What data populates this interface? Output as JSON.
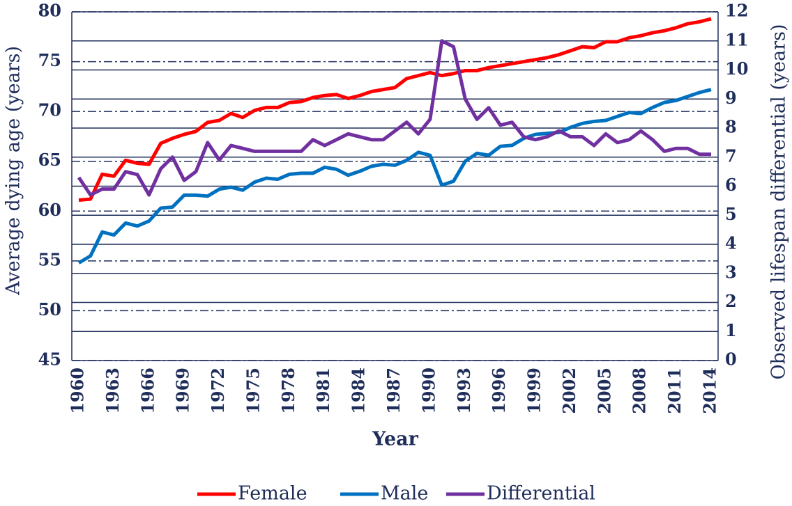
{
  "chart_data": {
    "type": "line",
    "xlabel": "Year",
    "ylabel": "Average dying age (years)",
    "y2label": "Observed lifespan differential (years)",
    "x": [
      1960,
      1961,
      1962,
      1963,
      1964,
      1965,
      1966,
      1967,
      1968,
      1969,
      1970,
      1971,
      1972,
      1973,
      1974,
      1975,
      1976,
      1977,
      1978,
      1979,
      1980,
      1981,
      1982,
      1983,
      1984,
      1985,
      1986,
      1987,
      1988,
      1989,
      1990,
      1991,
      1992,
      1993,
      1994,
      1995,
      1996,
      1997,
      1998,
      1999,
      2000,
      2001,
      2002,
      2003,
      2004,
      2005,
      2006,
      2007,
      2008,
      2009,
      2010,
      2011,
      2012,
      2013,
      2014
    ],
    "xlim": [
      1960,
      2014
    ],
    "xticks": [
      1960,
      1963,
      1966,
      1969,
      1972,
      1975,
      1978,
      1981,
      1984,
      1987,
      1990,
      1993,
      1996,
      1999,
      2002,
      2005,
      2008,
      2011,
      2014
    ],
    "ylim": [
      45,
      80
    ],
    "yticks": [
      45,
      50,
      55,
      60,
      65,
      70,
      75,
      80
    ],
    "y2lim": [
      0,
      12
    ],
    "y2ticks": [
      0,
      1,
      2,
      3,
      4,
      5,
      6,
      7,
      8,
      9,
      10,
      11,
      12
    ],
    "grid": true,
    "legend": "bottom",
    "series": [
      {
        "name": "Female",
        "color": "#ff0000",
        "values": [
          61.1,
          61.2,
          63.7,
          63.5,
          65.1,
          64.8,
          64.7,
          66.8,
          67.3,
          67.7,
          68.0,
          68.9,
          69.1,
          69.8,
          69.4,
          70.1,
          70.4,
          70.4,
          70.9,
          71.0,
          71.4,
          71.6,
          71.7,
          71.3,
          71.6,
          72.0,
          72.2,
          72.4,
          73.3,
          73.6,
          73.9,
          73.6,
          73.8,
          74.1,
          74.1,
          74.4,
          74.6,
          74.8,
          75.0,
          75.2,
          75.4,
          75.7,
          76.1,
          76.5,
          76.4,
          77.0,
          77.0,
          77.4,
          77.6,
          77.9,
          78.1,
          78.4,
          78.8,
          79.0,
          79.3
        ]
      },
      {
        "name": "Male",
        "color": "#0070c0",
        "values": [
          54.8,
          55.5,
          57.9,
          57.6,
          58.8,
          58.5,
          59.0,
          60.3,
          60.4,
          61.6,
          61.6,
          61.5,
          62.2,
          62.4,
          62.1,
          62.9,
          63.3,
          63.2,
          63.7,
          63.8,
          63.8,
          64.4,
          64.2,
          63.6,
          64.0,
          64.5,
          64.7,
          64.6,
          65.1,
          65.9,
          65.6,
          62.6,
          63.0,
          65.0,
          65.8,
          65.6,
          66.5,
          66.6,
          67.3,
          67.7,
          67.8,
          67.9,
          68.4,
          68.8,
          69.0,
          69.1,
          69.5,
          69.9,
          69.8,
          70.4,
          70.9,
          71.1,
          71.5,
          71.9,
          72.2
        ]
      },
      {
        "name": "Differential",
        "color": "#7030a0",
        "axis": "y2",
        "values": [
          6.3,
          5.7,
          5.9,
          5.9,
          6.5,
          6.4,
          5.7,
          6.6,
          7.0,
          6.2,
          6.5,
          7.5,
          6.9,
          7.4,
          7.3,
          7.2,
          7.2,
          7.2,
          7.2,
          7.2,
          7.6,
          7.4,
          7.6,
          7.8,
          7.7,
          7.6,
          7.6,
          7.9,
          8.2,
          7.8,
          8.3,
          11.0,
          10.8,
          9.0,
          8.3,
          8.7,
          8.1,
          8.2,
          7.7,
          7.6,
          7.7,
          7.9,
          7.7,
          7.7,
          7.4,
          7.8,
          7.5,
          7.6,
          7.9,
          7.6,
          7.2,
          7.3,
          7.3,
          7.1,
          7.1
        ]
      }
    ]
  }
}
